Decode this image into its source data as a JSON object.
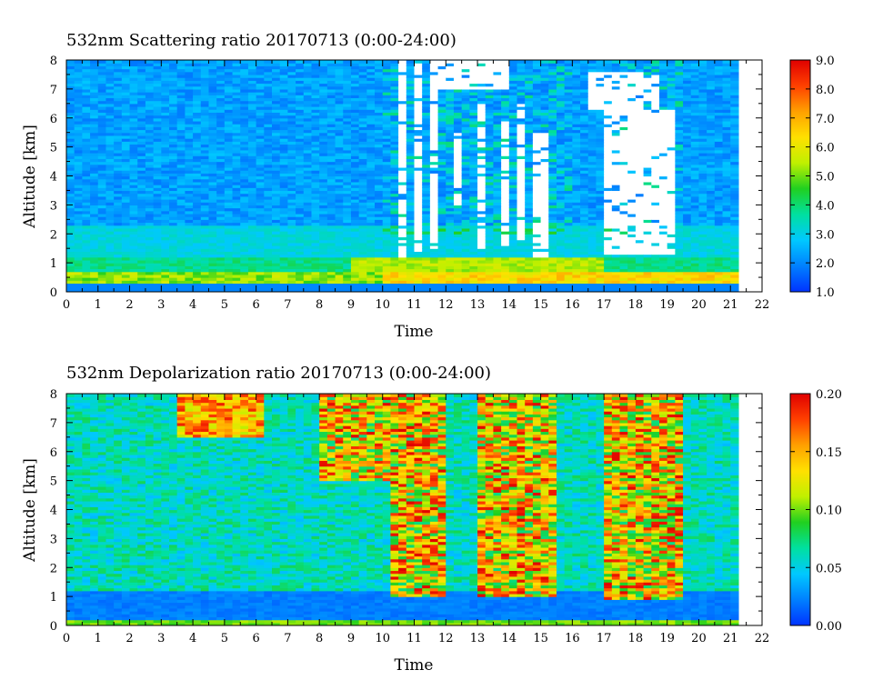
{
  "chart_data": [
    {
      "type": "heatmap",
      "title": "532nm Scattering ratio  20170713 (0:00-24:00)",
      "xlabel": "Time",
      "ylabel": "Altitude [km]",
      "xlim": [
        0,
        22
      ],
      "ylim": [
        0,
        8
      ],
      "x_ticks": [
        "0",
        "1",
        "2",
        "3",
        "4",
        "5",
        "6",
        "7",
        "8",
        "9",
        "10",
        "11",
        "12",
        "13",
        "14",
        "15",
        "16",
        "17",
        "18",
        "19",
        "20",
        "21",
        "22"
      ],
      "y_ticks": [
        "0",
        "1",
        "2",
        "3",
        "4",
        "5",
        "6",
        "7",
        "8"
      ],
      "data_end_time": 21.1,
      "colorbar": {
        "range": [
          1.0,
          9.0
        ],
        "ticks": [
          "1.0",
          "2.0",
          "3.0",
          "4.0",
          "5.0",
          "6.0",
          "7.0",
          "8.0",
          "9.0"
        ],
        "colormap": [
          "#0033ff",
          "#0080ff",
          "#00c8ff",
          "#00e0a0",
          "#20d020",
          "#c0f000",
          "#ffe000",
          "#ffa000",
          "#ff4000",
          "#e00000"
        ]
      },
      "cloud_regions": [
        {
          "t0": 10.4,
          "t1": 10.75,
          "z0": 1.2,
          "z1": 8
        },
        {
          "t0": 11.05,
          "t1": 11.35,
          "z0": 1.4,
          "z1": 8
        },
        {
          "t0": 11.45,
          "t1": 11.7,
          "z0": 1.5,
          "z1": 8
        },
        {
          "t0": 12.35,
          "t1": 12.5,
          "z0": 3.0,
          "z1": 5.5
        },
        {
          "t0": 13.1,
          "t1": 13.3,
          "z0": 1.5,
          "z1": 6.5
        },
        {
          "t0": 13.7,
          "t1": 14.1,
          "z0": 1.6,
          "z1": 6.0
        },
        {
          "t0": 14.3,
          "t1": 14.55,
          "z0": 1.8,
          "z1": 6.5
        },
        {
          "t0": 14.8,
          "t1": 15.25,
          "z0": 1.2,
          "z1": 5.5
        },
        {
          "t0": 17.1,
          "t1": 19.3,
          "z0": 1.3,
          "z1": 6.3
        },
        {
          "t0": 11.7,
          "t1": 13.9,
          "z0": 7.0,
          "z1": 8.0
        },
        {
          "t0": 16.5,
          "t1": 18.8,
          "z0": 6.3,
          "z1": 7.6
        }
      ]
    },
    {
      "type": "heatmap",
      "title": "532nm Depolarization ratio  20170713 (0:00-24:00)",
      "xlabel": "Time",
      "ylabel": "Altitude [km]",
      "xlim": [
        0,
        22
      ],
      "ylim": [
        0,
        8
      ],
      "x_ticks": [
        "0",
        "1",
        "2",
        "3",
        "4",
        "5",
        "6",
        "7",
        "8",
        "9",
        "10",
        "11",
        "12",
        "13",
        "14",
        "15",
        "16",
        "17",
        "18",
        "19",
        "20",
        "21",
        "22"
      ],
      "y_ticks": [
        "0",
        "1",
        "2",
        "3",
        "4",
        "5",
        "6",
        "7",
        "8"
      ],
      "data_end_time": 21.1,
      "colorbar": {
        "range": [
          0.0,
          0.2
        ],
        "ticks": [
          "0.00",
          "0.05",
          "0.10",
          "0.15",
          "0.20"
        ],
        "colormap": [
          "#0033ff",
          "#0080ff",
          "#00c8ff",
          "#00e0a0",
          "#20d020",
          "#c0f000",
          "#ffe000",
          "#ffa000",
          "#ff4000",
          "#e00000"
        ]
      },
      "high_depol_regions": [
        {
          "t0": 10.3,
          "t1": 11.9,
          "z0": 1.0,
          "z1": 8.0
        },
        {
          "t0": 12.9,
          "t1": 15.4,
          "z0": 1.0,
          "z1": 8.0
        },
        {
          "t0": 17.1,
          "t1": 19.5,
          "z0": 0.9,
          "z1": 8.0
        },
        {
          "t0": 8.0,
          "t1": 10.3,
          "z0": 5.0,
          "z1": 8.0
        }
      ]
    }
  ]
}
